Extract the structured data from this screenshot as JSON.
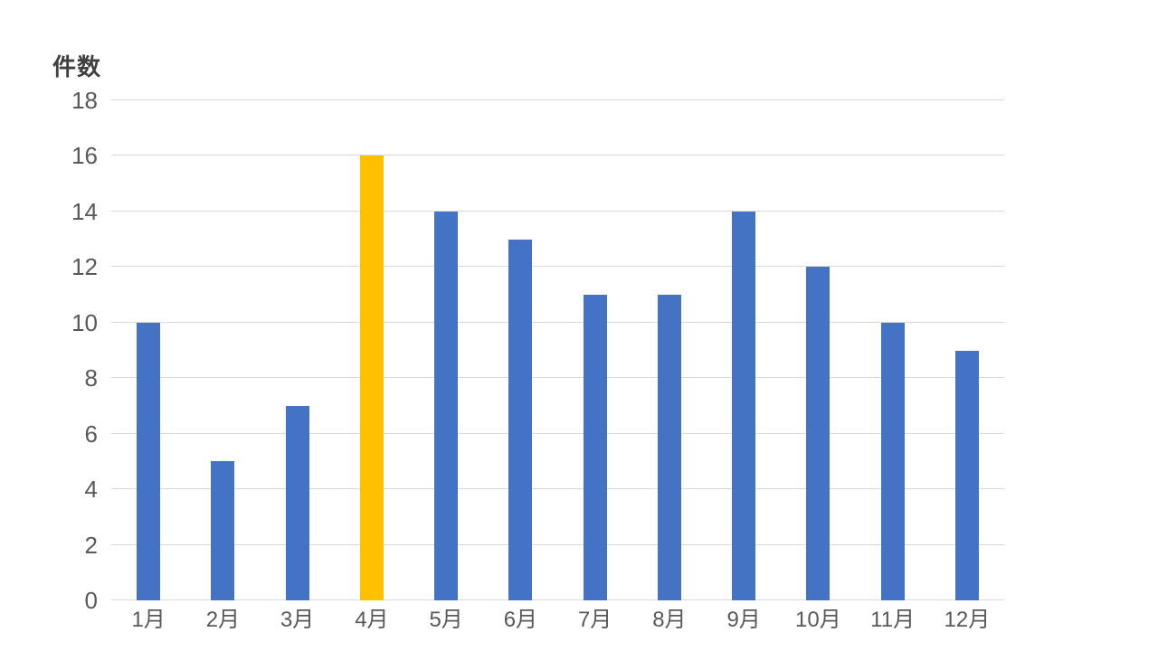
{
  "chart": {
    "y_axis_title": "件数",
    "colors": {
      "background": "#FFFFFF",
      "bar": "#4472C4",
      "bar_highlight": "#FFC000",
      "gridline": "#D9D9D9",
      "axis_line": "#D9D9D9",
      "tick_label": "#595959",
      "axis_title": "#3F3F3F"
    }
  },
  "chart_data": {
    "type": "bar",
    "title": "",
    "ylabel": "件数",
    "xlabel": "",
    "categories": [
      "1月",
      "2月",
      "3月",
      "4月",
      "5月",
      "6月",
      "7月",
      "8月",
      "9月",
      "10月",
      "11月",
      "12月"
    ],
    "values": [
      10,
      5,
      7,
      16,
      14,
      13,
      11,
      11,
      14,
      12,
      10,
      9
    ],
    "highlight_index": 3,
    "bar_color": "#4472C4",
    "highlight_color": "#FFC000",
    "ylim": [
      0,
      18
    ],
    "y_ticks": [
      0,
      2,
      4,
      6,
      8,
      10,
      12,
      14,
      16,
      18
    ],
    "grid": true,
    "legend": false
  }
}
